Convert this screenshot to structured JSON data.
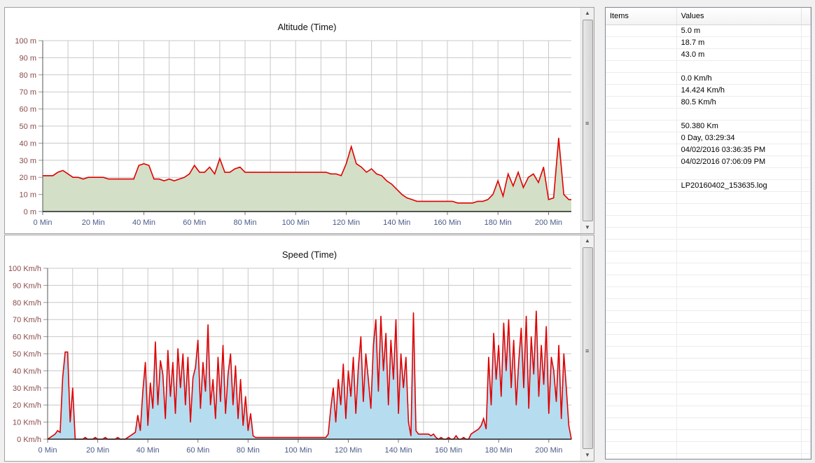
{
  "chart_data": [
    {
      "type": "area",
      "title": "Altitude (Time)",
      "y_unit": "m",
      "x_unit": "Min",
      "xlim": [
        0,
        209
      ],
      "ylim": [
        0,
        100
      ],
      "x_ticks": [
        0,
        20,
        40,
        60,
        80,
        100,
        120,
        140,
        160,
        180,
        200
      ],
      "y_ticks": [
        0,
        10,
        20,
        30,
        40,
        50,
        60,
        70,
        80,
        90,
        100
      ],
      "grid": true,
      "line_color": "#e00000",
      "fill_color": "#d3dfc6",
      "x": [
        0,
        2,
        4,
        6,
        8,
        10,
        12,
        14,
        16,
        18,
        20,
        22,
        24,
        26,
        28,
        30,
        32,
        34,
        36,
        38,
        40,
        42,
        44,
        46,
        48,
        50,
        52,
        54,
        56,
        58,
        60,
        62,
        64,
        66,
        68,
        70,
        72,
        74,
        76,
        78,
        80,
        82,
        84,
        86,
        88,
        90,
        92,
        94,
        96,
        98,
        100,
        102,
        104,
        106,
        108,
        110,
        112,
        114,
        116,
        118,
        120,
        122,
        124,
        126,
        128,
        130,
        132,
        134,
        136,
        138,
        140,
        142,
        144,
        146,
        148,
        150,
        152,
        154,
        156,
        158,
        160,
        162,
        164,
        166,
        168,
        170,
        172,
        174,
        176,
        178,
        180,
        182,
        184,
        186,
        188,
        190,
        192,
        194,
        196,
        198,
        200,
        202,
        204,
        206,
        208
      ],
      "values": [
        21,
        21,
        21,
        23,
        24,
        22,
        20,
        20,
        19,
        20,
        20,
        20,
        20,
        19,
        19,
        19,
        19,
        19,
        19,
        27,
        28,
        27,
        19,
        19,
        18,
        19,
        18,
        19,
        20,
        22,
        27,
        23,
        23,
        26,
        22,
        31,
        23,
        23,
        25,
        26,
        23,
        23,
        23,
        23,
        23,
        23,
        23,
        23,
        23,
        23,
        23,
        23,
        23,
        23,
        23,
        23,
        23,
        22,
        22,
        21,
        28,
        38,
        28,
        26,
        23,
        25,
        22,
        21,
        18,
        16,
        13,
        10,
        8,
        7,
        6,
        6,
        6,
        6,
        6,
        6,
        6,
        6,
        5,
        5,
        5,
        5,
        6,
        6,
        7,
        10,
        18,
        9,
        22,
        15,
        23,
        14,
        20,
        22,
        17,
        26,
        7,
        8,
        43,
        10,
        7
      ]
    },
    {
      "type": "area",
      "title": "Speed (Time)",
      "y_unit": "Km/h",
      "x_unit": "Min",
      "xlim": [
        0,
        209
      ],
      "ylim": [
        0,
        100
      ],
      "x_ticks": [
        0,
        20,
        40,
        60,
        80,
        100,
        120,
        140,
        160,
        180,
        200
      ],
      "y_ticks": [
        0,
        10,
        20,
        30,
        40,
        50,
        60,
        70,
        80,
        90,
        100
      ],
      "grid": true,
      "line_color": "#e00000",
      "fill_color": "#b6dcf0",
      "values": [
        0,
        1,
        2,
        3,
        5,
        4,
        36,
        51,
        51,
        10,
        30,
        0,
        0,
        0,
        0,
        1,
        0,
        0,
        0,
        1,
        0,
        0,
        0,
        1,
        0,
        0,
        0,
        0,
        1,
        0,
        0,
        0,
        1,
        2,
        3,
        4,
        14,
        5,
        28,
        45,
        8,
        33,
        18,
        57,
        20,
        46,
        38,
        12,
        52,
        25,
        45,
        15,
        53,
        30,
        50,
        20,
        48,
        10,
        36,
        42,
        58,
        18,
        45,
        28,
        67,
        20,
        35,
        12,
        48,
        22,
        55,
        15,
        38,
        50,
        20,
        43,
        12,
        35,
        8,
        25,
        5,
        15,
        2,
        1,
        1,
        1,
        1,
        1,
        1,
        1,
        1,
        1,
        1,
        1,
        1,
        1,
        1,
        1,
        1,
        1,
        1,
        1,
        1,
        1,
        1,
        1,
        1,
        1,
        1,
        1,
        1,
        1,
        3,
        18,
        30,
        10,
        35,
        20,
        44,
        12,
        40,
        25,
        48,
        15,
        42,
        60,
        22,
        50,
        35,
        18,
        55,
        70,
        28,
        72,
        40,
        62,
        20,
        58,
        35,
        70,
        15,
        50,
        30,
        48,
        10,
        2,
        74,
        5,
        3,
        3,
        3,
        3,
        3,
        2,
        3,
        1,
        0,
        1,
        0,
        0,
        1,
        0,
        0,
        2,
        0,
        0,
        1,
        0,
        0,
        3,
        4,
        5,
        6,
        8,
        12,
        6,
        48,
        20,
        62,
        35,
        55,
        25,
        68,
        40,
        70,
        30,
        58,
        20,
        45,
        65,
        30,
        72,
        18,
        60,
        38,
        75,
        25,
        55,
        32,
        66,
        15,
        48,
        40,
        22,
        55,
        12,
        50,
        30,
        8,
        0
      ]
    }
  ],
  "table": {
    "headers": [
      "Items",
      "Values"
    ],
    "rows": [
      [
        "",
        "5.0 m"
      ],
      [
        "",
        "18.7 m"
      ],
      [
        "",
        "43.0 m"
      ],
      [
        "",
        ""
      ],
      [
        "",
        "0.0 Km/h"
      ],
      [
        "",
        "14.424 Km/h"
      ],
      [
        "",
        "80.5 Km/h"
      ],
      [
        "",
        ""
      ],
      [
        "",
        "50.380 Km"
      ],
      [
        "",
        "0 Day, 03:29:34"
      ],
      [
        "",
        "04/02/2016 03:36:35 PM"
      ],
      [
        "",
        "04/02/2016 07:06:09 PM"
      ],
      [
        "",
        ""
      ],
      [
        "",
        "LP20160402_153635.log"
      ]
    ]
  },
  "icons": {
    "scroll_up": "chevron-up-icon",
    "scroll_down": "chevron-down-icon",
    "grip": "scroll-grip-icon"
  }
}
